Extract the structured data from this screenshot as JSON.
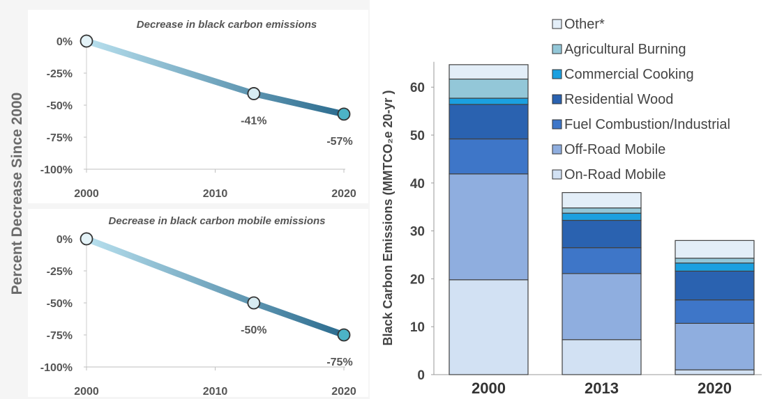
{
  "chart_data": [
    {
      "type": "line",
      "title": "Decrease in black carbon emissions",
      "x": [
        2000,
        2013,
        2020
      ],
      "values": [
        0,
        -41,
        -57
      ],
      "data_labels": [
        "",
        "-41%",
        "-57%"
      ],
      "x_ticks": [
        "2000",
        "2010",
        "2020"
      ],
      "y_ticks": [
        "0%",
        "-25%",
        "-50%",
        "-75%",
        "-100%"
      ],
      "xlim": [
        2000,
        2020
      ],
      "ylim": [
        -100,
        0
      ]
    },
    {
      "type": "line",
      "title": "Decrease in black carbon mobile emissions",
      "x": [
        2000,
        2013,
        2020
      ],
      "values": [
        0,
        -50,
        -75
      ],
      "data_labels": [
        "",
        "-50%",
        "-75%"
      ],
      "x_ticks": [
        "2000",
        "2010",
        "2020"
      ],
      "y_ticks": [
        "0%",
        "-25%",
        "-50%",
        "-75%",
        "-100%"
      ],
      "xlim": [
        2000,
        2020
      ],
      "ylim": [
        -100,
        0
      ]
    },
    {
      "type": "bar",
      "stacked": true,
      "categories": [
        "2000",
        "2013",
        "2020"
      ],
      "ylabel": "Black Carbon Emissions (MMTCO₂e 20-yr )",
      "ylim": [
        0,
        65
      ],
      "y_ticks": [
        "0",
        "10",
        "20",
        "30",
        "40",
        "50",
        "60"
      ],
      "legend_position": "top-right",
      "series": [
        {
          "name": "On-Road Mobile",
          "color": "#d2e1f3",
          "values": [
            19.8,
            7.3,
            1.0
          ]
        },
        {
          "name": "Off-Road Mobile",
          "color": "#8faedf",
          "values": [
            22.1,
            13.8,
            9.7
          ]
        },
        {
          "name": "Fuel Combustion/Industrial",
          "color": "#3e76c8",
          "values": [
            7.3,
            5.4,
            4.9
          ]
        },
        {
          "name": "Residential Wood",
          "color": "#2a62b0",
          "values": [
            7.2,
            5.7,
            6.0
          ]
        },
        {
          "name": "Commercial Cooking",
          "color": "#1ba0e0",
          "values": [
            1.3,
            1.5,
            1.7
          ]
        },
        {
          "name": "Agricultural Burning",
          "color": "#93c7d8",
          "values": [
            4.0,
            1.1,
            1.0
          ]
        },
        {
          "name": "Other*",
          "color": "#e3eef8",
          "values": [
            3.0,
            3.2,
            3.7
          ]
        }
      ]
    }
  ],
  "shared_ylabel": "Percent Decrease Since 2000",
  "colors": {
    "line_start": "#b8e0ee",
    "line_end": "#2b6b8e",
    "marker_fill": "#4cb3c6",
    "bar_border": "#404040"
  }
}
